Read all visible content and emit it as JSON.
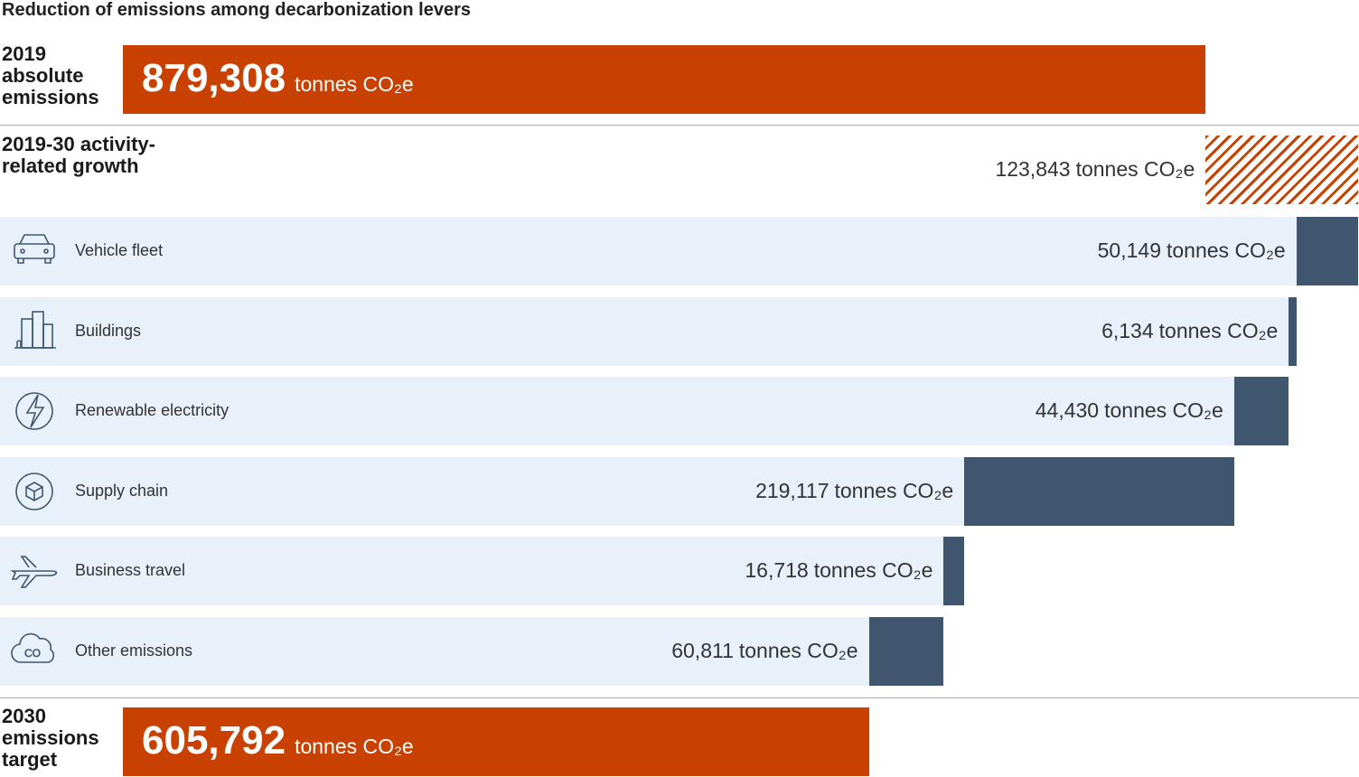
{
  "chart_data": {
    "type": "waterfall",
    "title": "Reduction of emissions among decarbonization levers",
    "unit": "tonnes CO₂e",
    "categories": [
      "2019 absolute emissions",
      "2019-30 activity-related growth",
      "Vehicle fleet",
      "Buildings",
      "Renewable electricity",
      "Supply chain",
      "Business travel",
      "Other emissions",
      "2030 emissions target"
    ],
    "measure": [
      "total",
      "increase",
      "decrease",
      "decrease",
      "decrease",
      "decrease",
      "decrease",
      "decrease",
      "total"
    ],
    "values": [
      879308,
      123843,
      50149,
      6134,
      44430,
      219117,
      16718,
      60811,
      605792
    ],
    "value_labels": [
      "879,308",
      "123,843",
      "50,149",
      "6,134",
      "44,430",
      "219,117",
      "16,718",
      "60,811",
      "605,792"
    ],
    "colors": {
      "total": "#c84100",
      "increase": "#c84100",
      "decrease": "#3f566e"
    }
  }
}
